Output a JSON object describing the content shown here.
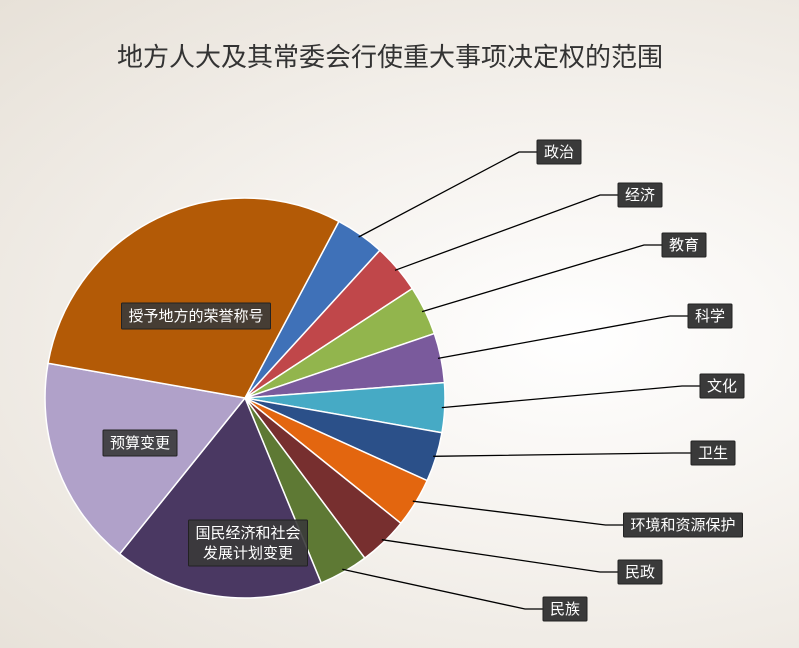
{
  "chart_data": {
    "type": "pie",
    "title": "地方人大及其常委会行使重大事项决定权的范围",
    "start_angle_deg": -62,
    "slices": [
      {
        "label": "政治",
        "value": 4,
        "color": "#3f71b8",
        "label_placement": "outside"
      },
      {
        "label": "经济",
        "value": 4,
        "color": "#c0474a",
        "label_placement": "outside"
      },
      {
        "label": "教育",
        "value": 4,
        "color": "#92b54d",
        "label_placement": "outside"
      },
      {
        "label": "科学",
        "value": 4,
        "color": "#7a5a9c",
        "label_placement": "outside"
      },
      {
        "label": "文化",
        "value": 4,
        "color": "#46aac5",
        "label_placement": "outside"
      },
      {
        "label": "卫生",
        "value": 4,
        "color": "#2b5089",
        "label_placement": "outside"
      },
      {
        "label": "环境和资源保护",
        "value": 4,
        "color": "#e3660f",
        "label_placement": "outside"
      },
      {
        "label": "民政",
        "value": 4,
        "color": "#772f2f",
        "label_placement": "outside"
      },
      {
        "label": "民族",
        "value": 4,
        "color": "#5e7934",
        "label_placement": "outside"
      },
      {
        "label": "国民经济和社会\n发展计划变更",
        "value": 17,
        "color": "#4a3862",
        "label_placement": "inside"
      },
      {
        "label": "预算变更",
        "value": 17,
        "color": "#b0a1c9",
        "label_placement": "inside"
      },
      {
        "label": "授予地方的荣誉称号",
        "value": 30,
        "color": "#b35a06",
        "label_placement": "inside"
      }
    ],
    "legend": "none"
  }
}
